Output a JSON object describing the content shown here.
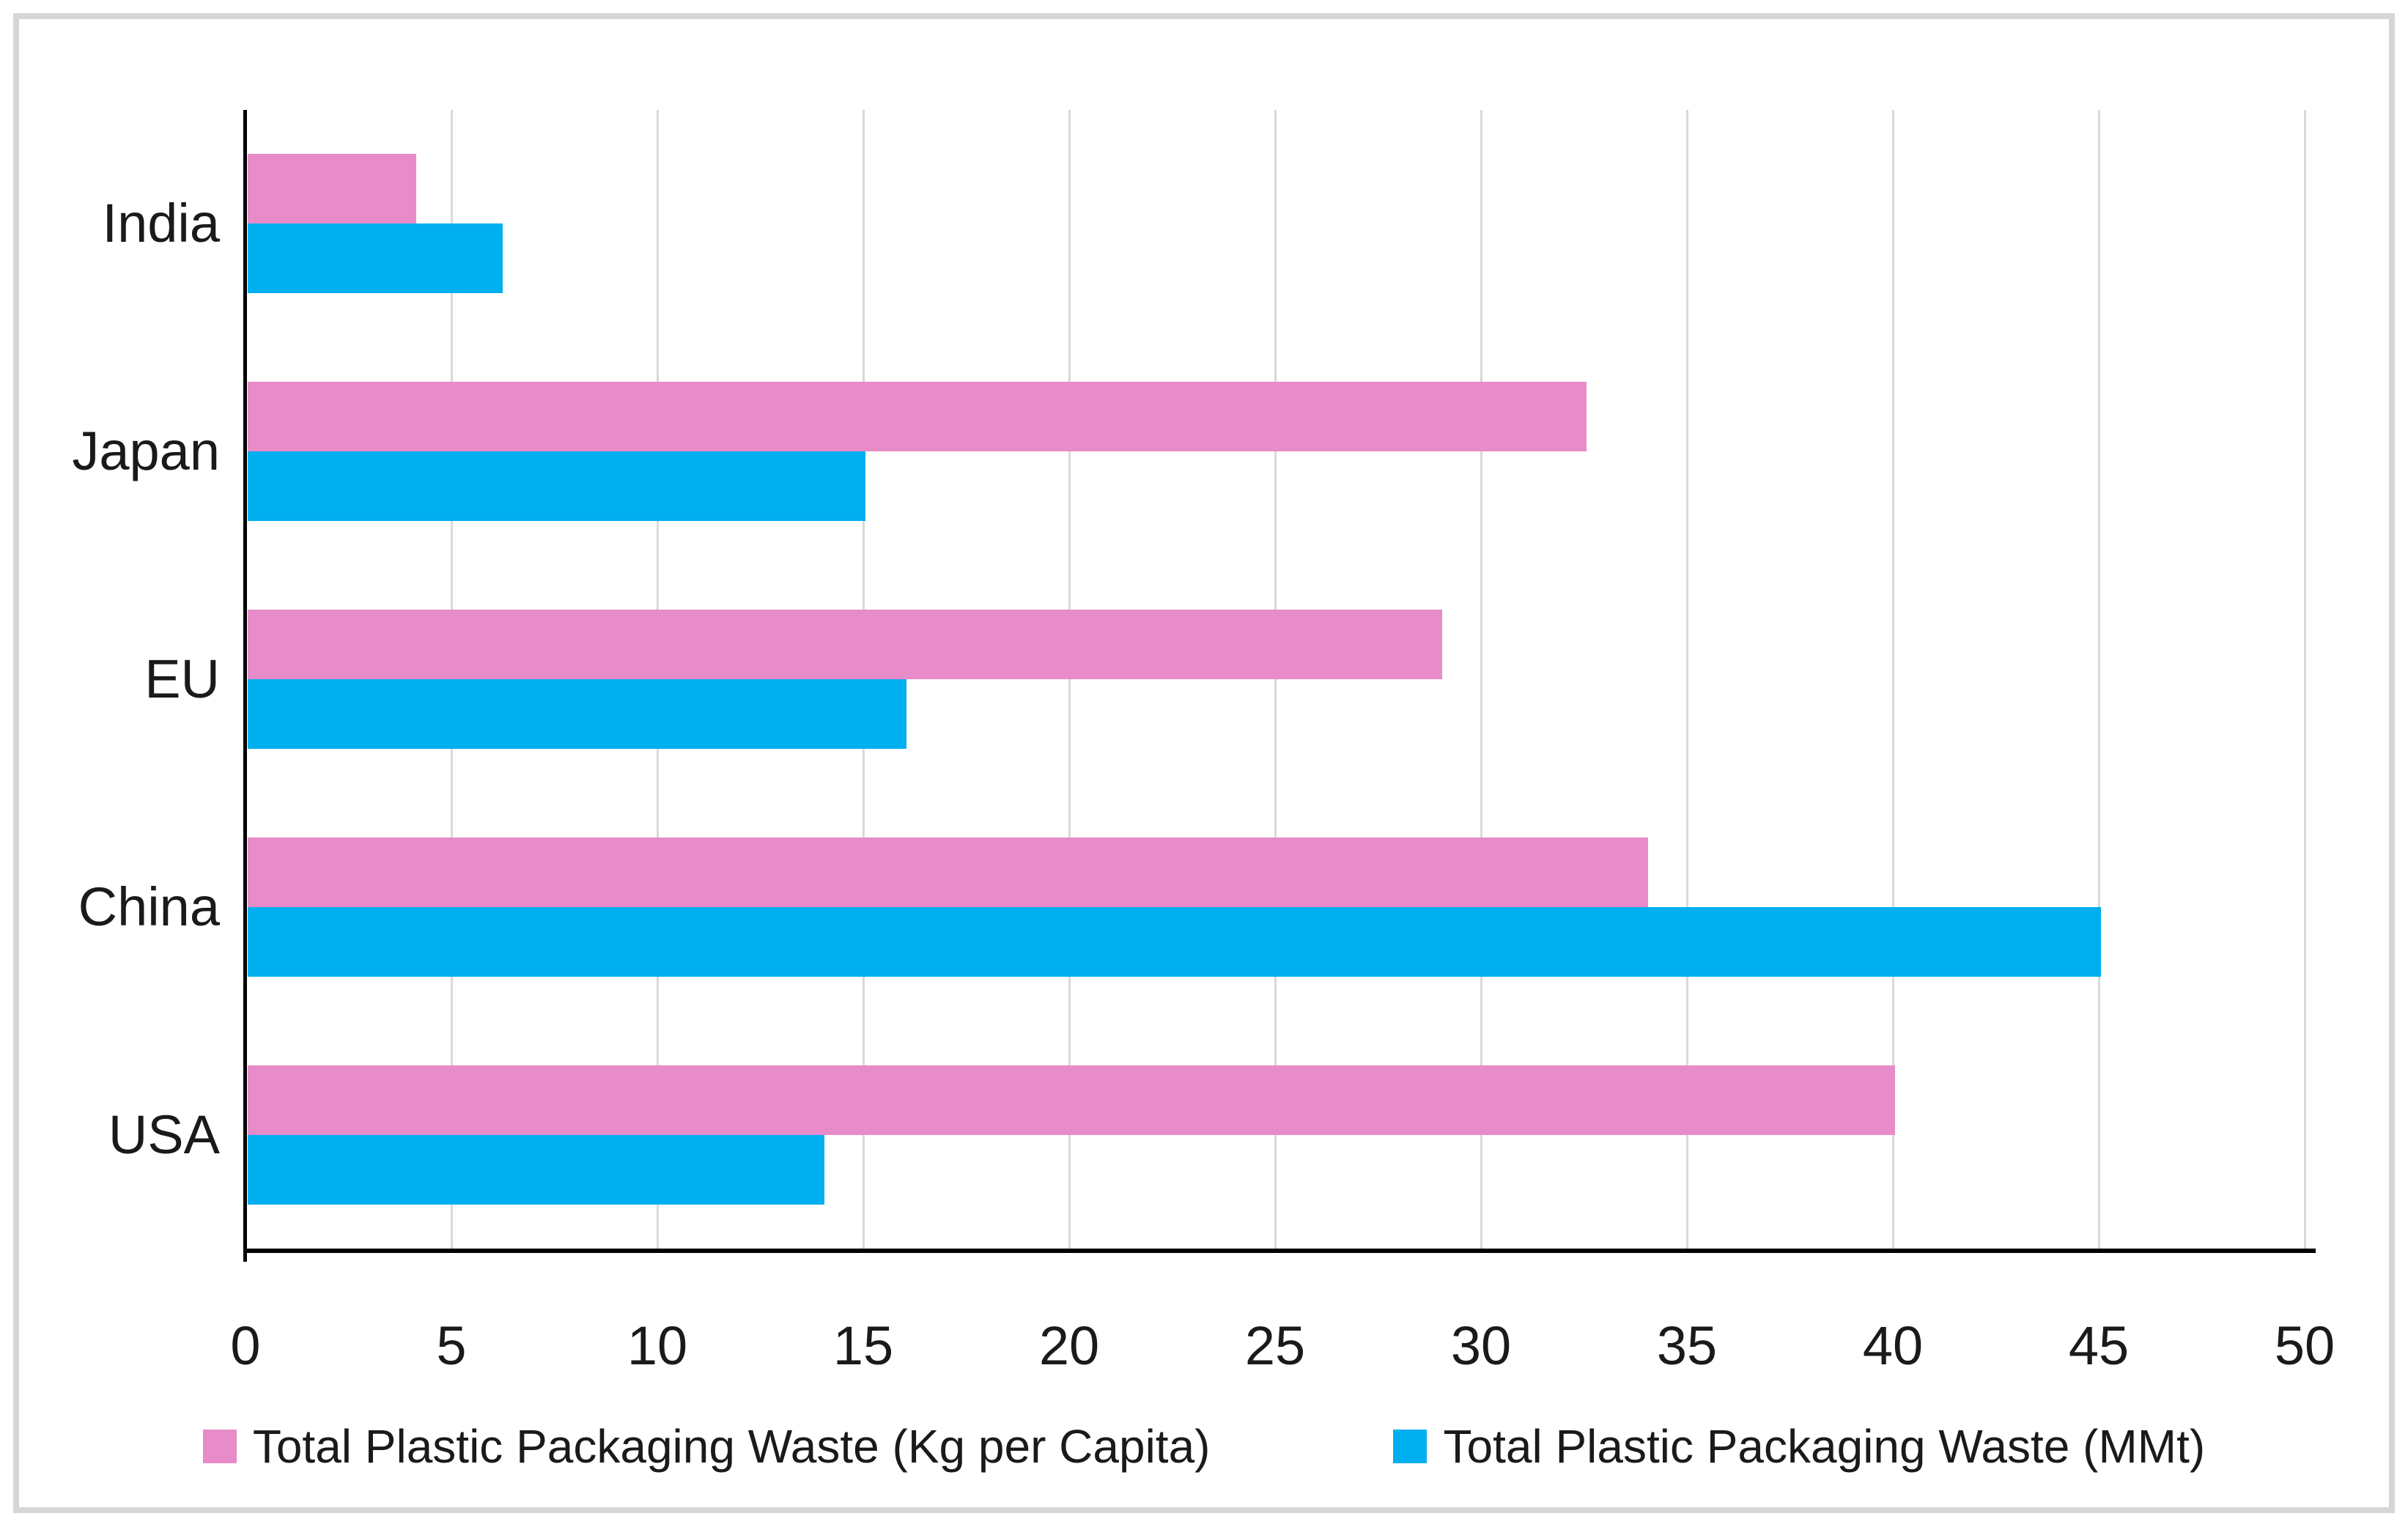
{
  "chart_data": {
    "type": "bar",
    "orientation": "horizontal",
    "title": "",
    "xlabel": "",
    "ylabel": "",
    "xlim": [
      0,
      50
    ],
    "x_ticks": [
      0,
      5,
      10,
      15,
      20,
      25,
      30,
      35,
      40,
      45,
      50
    ],
    "grid": true,
    "legend_position": "bottom",
    "categories_top_to_bottom": [
      "India",
      "Japan",
      "EU",
      "China",
      "USA"
    ],
    "series": [
      {
        "name": "Total Plastic Packaging Waste (Kg per Capita)",
        "color": "#E78BC9",
        "values": [
          4.1,
          32.5,
          29,
          34,
          40
        ]
      },
      {
        "name": "Total Plastic Packaging Waste (MMt)",
        "color": "#00AFEF",
        "values": [
          6.2,
          15,
          16,
          45,
          14
        ]
      }
    ],
    "colors": {
      "gridline": "#d9d9d9",
      "axis": "#000000",
      "text": "#1a1a1a",
      "frame_border": "#d6d6d6",
      "background": "#ffffff"
    }
  }
}
